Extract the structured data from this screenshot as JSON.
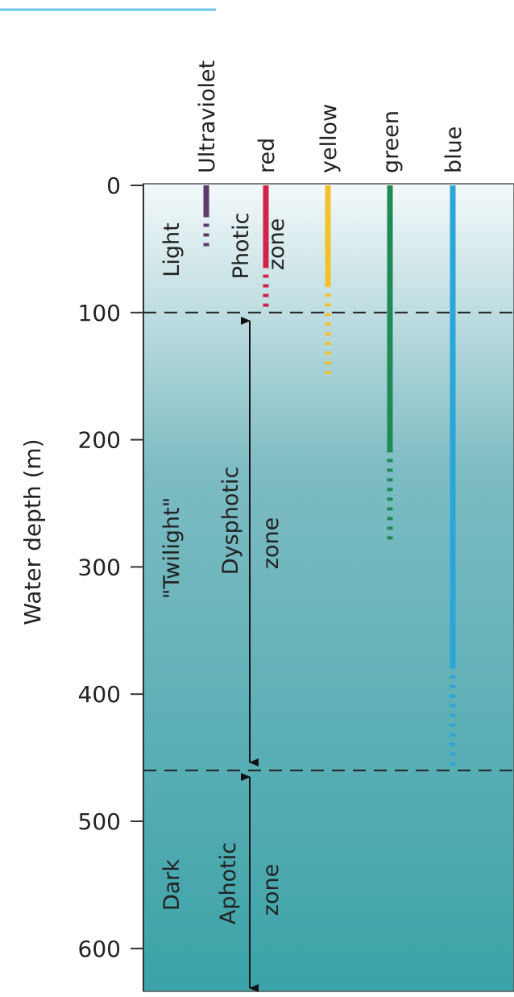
{
  "axis": {
    "label": "Water depth (m)",
    "ticks": [
      "0",
      "100",
      "200",
      "300",
      "400",
      "500",
      "600"
    ]
  },
  "wavelengths": [
    "Ultraviolet",
    "red",
    "yellow",
    "green",
    "blue"
  ],
  "light_zones": {
    "light": "Light",
    "twilight": "\"Twilight\"",
    "dark": "Dark"
  },
  "depth_zones": {
    "photic": {
      "line1": "Photic",
      "line2": "zone"
    },
    "dysphotic": {
      "line1": "Dysphotic",
      "line2": "zone"
    },
    "aphotic": {
      "line1": "Aphotic",
      "line2": "zone"
    }
  },
  "chart_data": {
    "type": "range-bars",
    "ylim": [
      0,
      640
    ],
    "boundaries_m": [
      100,
      460
    ],
    "penetration": [
      {
        "name": "Ultraviolet",
        "solid_to": 25,
        "dotted_to": 50,
        "color": "#5e3a6e"
      },
      {
        "name": "red",
        "solid_to": 65,
        "dotted_to": 100,
        "color": "#d1234b"
      },
      {
        "name": "yellow",
        "solid_to": 80,
        "dotted_to": 150,
        "color": "#f2c22e"
      },
      {
        "name": "green",
        "solid_to": 210,
        "dotted_to": 280,
        "color": "#1f8a55"
      },
      {
        "name": "blue",
        "solid_to": 380,
        "dotted_to": 460,
        "color": "#2aa6d8"
      }
    ],
    "colors": {
      "water_top": "#f4f9fa",
      "water_mid": "#7ebcc3",
      "water_deep": "#3ba3a8",
      "header_rule": "#6cc8e8"
    }
  }
}
